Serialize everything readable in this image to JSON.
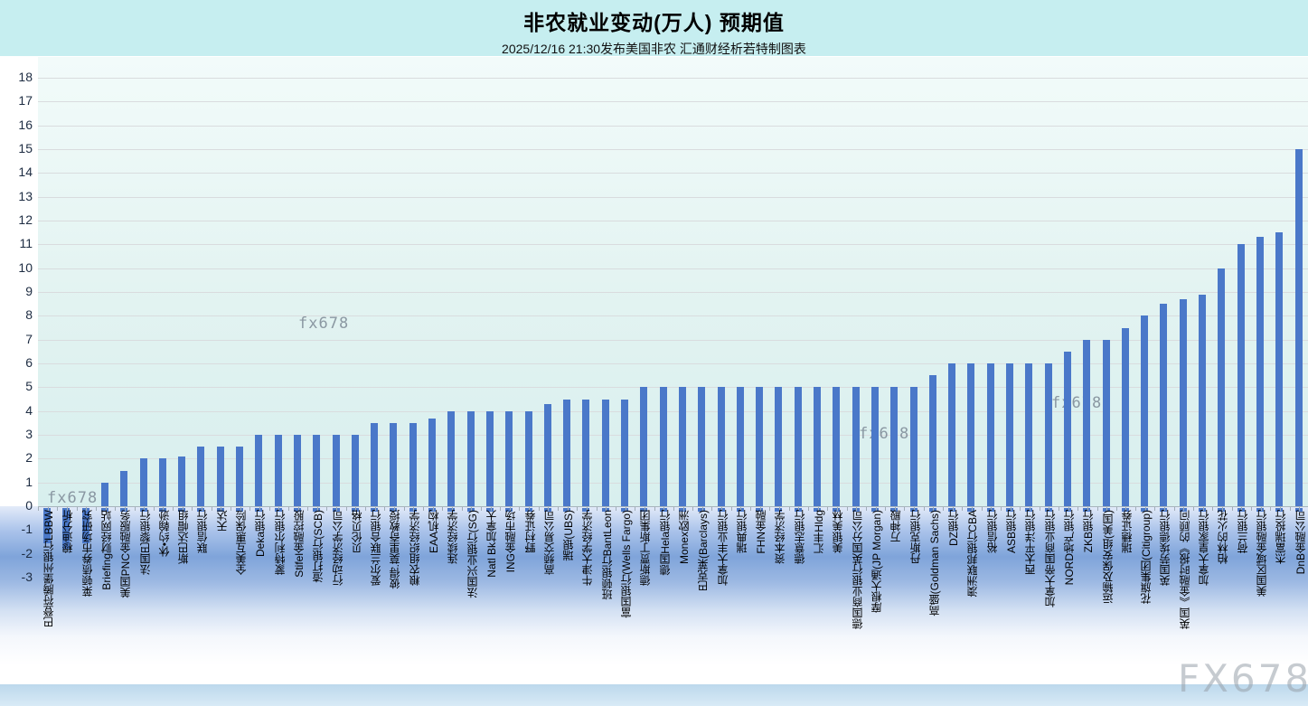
{
  "header": {
    "title": "非农就业变动(万人)  预期值",
    "subtitle": "2025/12/16 21:30发布美国非农  汇通财经析若特制图表"
  },
  "watermarks": {
    "small_text": "fx678",
    "large_text": "FX678"
  },
  "chart_data": {
    "type": "bar",
    "title": "非农就业变动(万人)  预期值",
    "subtitle": "2025/12/16 21:30发布美国非农  汇通财经析若特制图表",
    "xlabel": "",
    "ylabel": "",
    "ylim": [
      -3,
      18
    ],
    "ytick_step": 1,
    "grid": true,
    "legend": false,
    "bar_color": "#4a78c9",
    "categories": [
      "巴登符腾堡州银行LBBW",
      "穆迪分析",
      "莱顿债券市场研究",
      "Briefing财经网站",
      "美国PNC金融服务",
      "法国巴黎银行",
      "休•约翰逊",
      "斯巴达帽组",
      "联信银行",
      "天达",
      "全美互惠保险",
      "Deka银行",
      "蒙特利尔银行",
      "Stifel金融控股",
      "渣打银行(SCB)",
      "行动经济学公司",
      "贝伦贝格",
      "爱尔兰联合银行",
      "彼得.莫里奇教授",
      "粮农组织经济学",
      "EAA机构",
      "连续经济学",
      "法国兴业银行(SG)",
      "Natl Bk加拿大",
      "ING金融市场",
      "野村证券",
      "高频交易公司",
      "瑞银(UBS)",
      "牛津大学经济学",
      "班顿银行BantLeon",
      "富国银行(Wells Fargo)",
      "德斯贾丁斯集团",
      "德国Hela银行",
      "Monex欧洲",
      "巴克莱(Barclays)",
      "加拿大丰业银行",
      "瑞典银行",
      "FHN金融",
      "资本经济学",
      "德意志银行",
      "汇丰Hldg",
      "美银美林",
      "德国商业银行英国分公司",
      "摩根大通(JP Morgan)",
      "万神殿",
      "丹斯克银行",
      "高盛(Goldman Sachs)",
      "DZ银行",
      "澳洲联邦银行CBA",
      "裕信银行",
      "ASB银行",
      "西太平洋银行",
      "加拿大帝国商业银行",
      "NORD地产银行",
      "ZKB银行",
      "运输及保安组(美国)",
      "瑞穗证券",
      "花旗集团(Citigroup)",
      "英国劳埃德银行",
      "英国《金融时报》的顾问",
      "加拿大皇家银行",
      "柏林的火花",
      "荷兰银行",
      "美国区域金融银行",
      "杰富瑞投行",
      "DnB金融公司"
    ],
    "values": [
      -1.5,
      -1.7,
      -1.5,
      1.0,
      1.5,
      2.0,
      2.0,
      2.1,
      2.5,
      2.5,
      2.5,
      3.0,
      3.0,
      3.0,
      3.0,
      3.0,
      3.0,
      3.5,
      3.5,
      3.5,
      3.7,
      4.0,
      4.0,
      4.0,
      4.0,
      4.0,
      4.3,
      4.5,
      4.5,
      4.5,
      4.5,
      5.0,
      5.0,
      5.0,
      5.0,
      5.0,
      5.0,
      5.0,
      5.0,
      5.0,
      5.0,
      5.0,
      5.0,
      5.0,
      5.0,
      5.0,
      5.5,
      6.0,
      6.0,
      6.0,
      6.0,
      6.0,
      6.0,
      6.5,
      7.0,
      7.0,
      7.5,
      8.0,
      8.5,
      8.7,
      8.9,
      10.0,
      11.0,
      11.3,
      11.5,
      15.0
    ]
  }
}
